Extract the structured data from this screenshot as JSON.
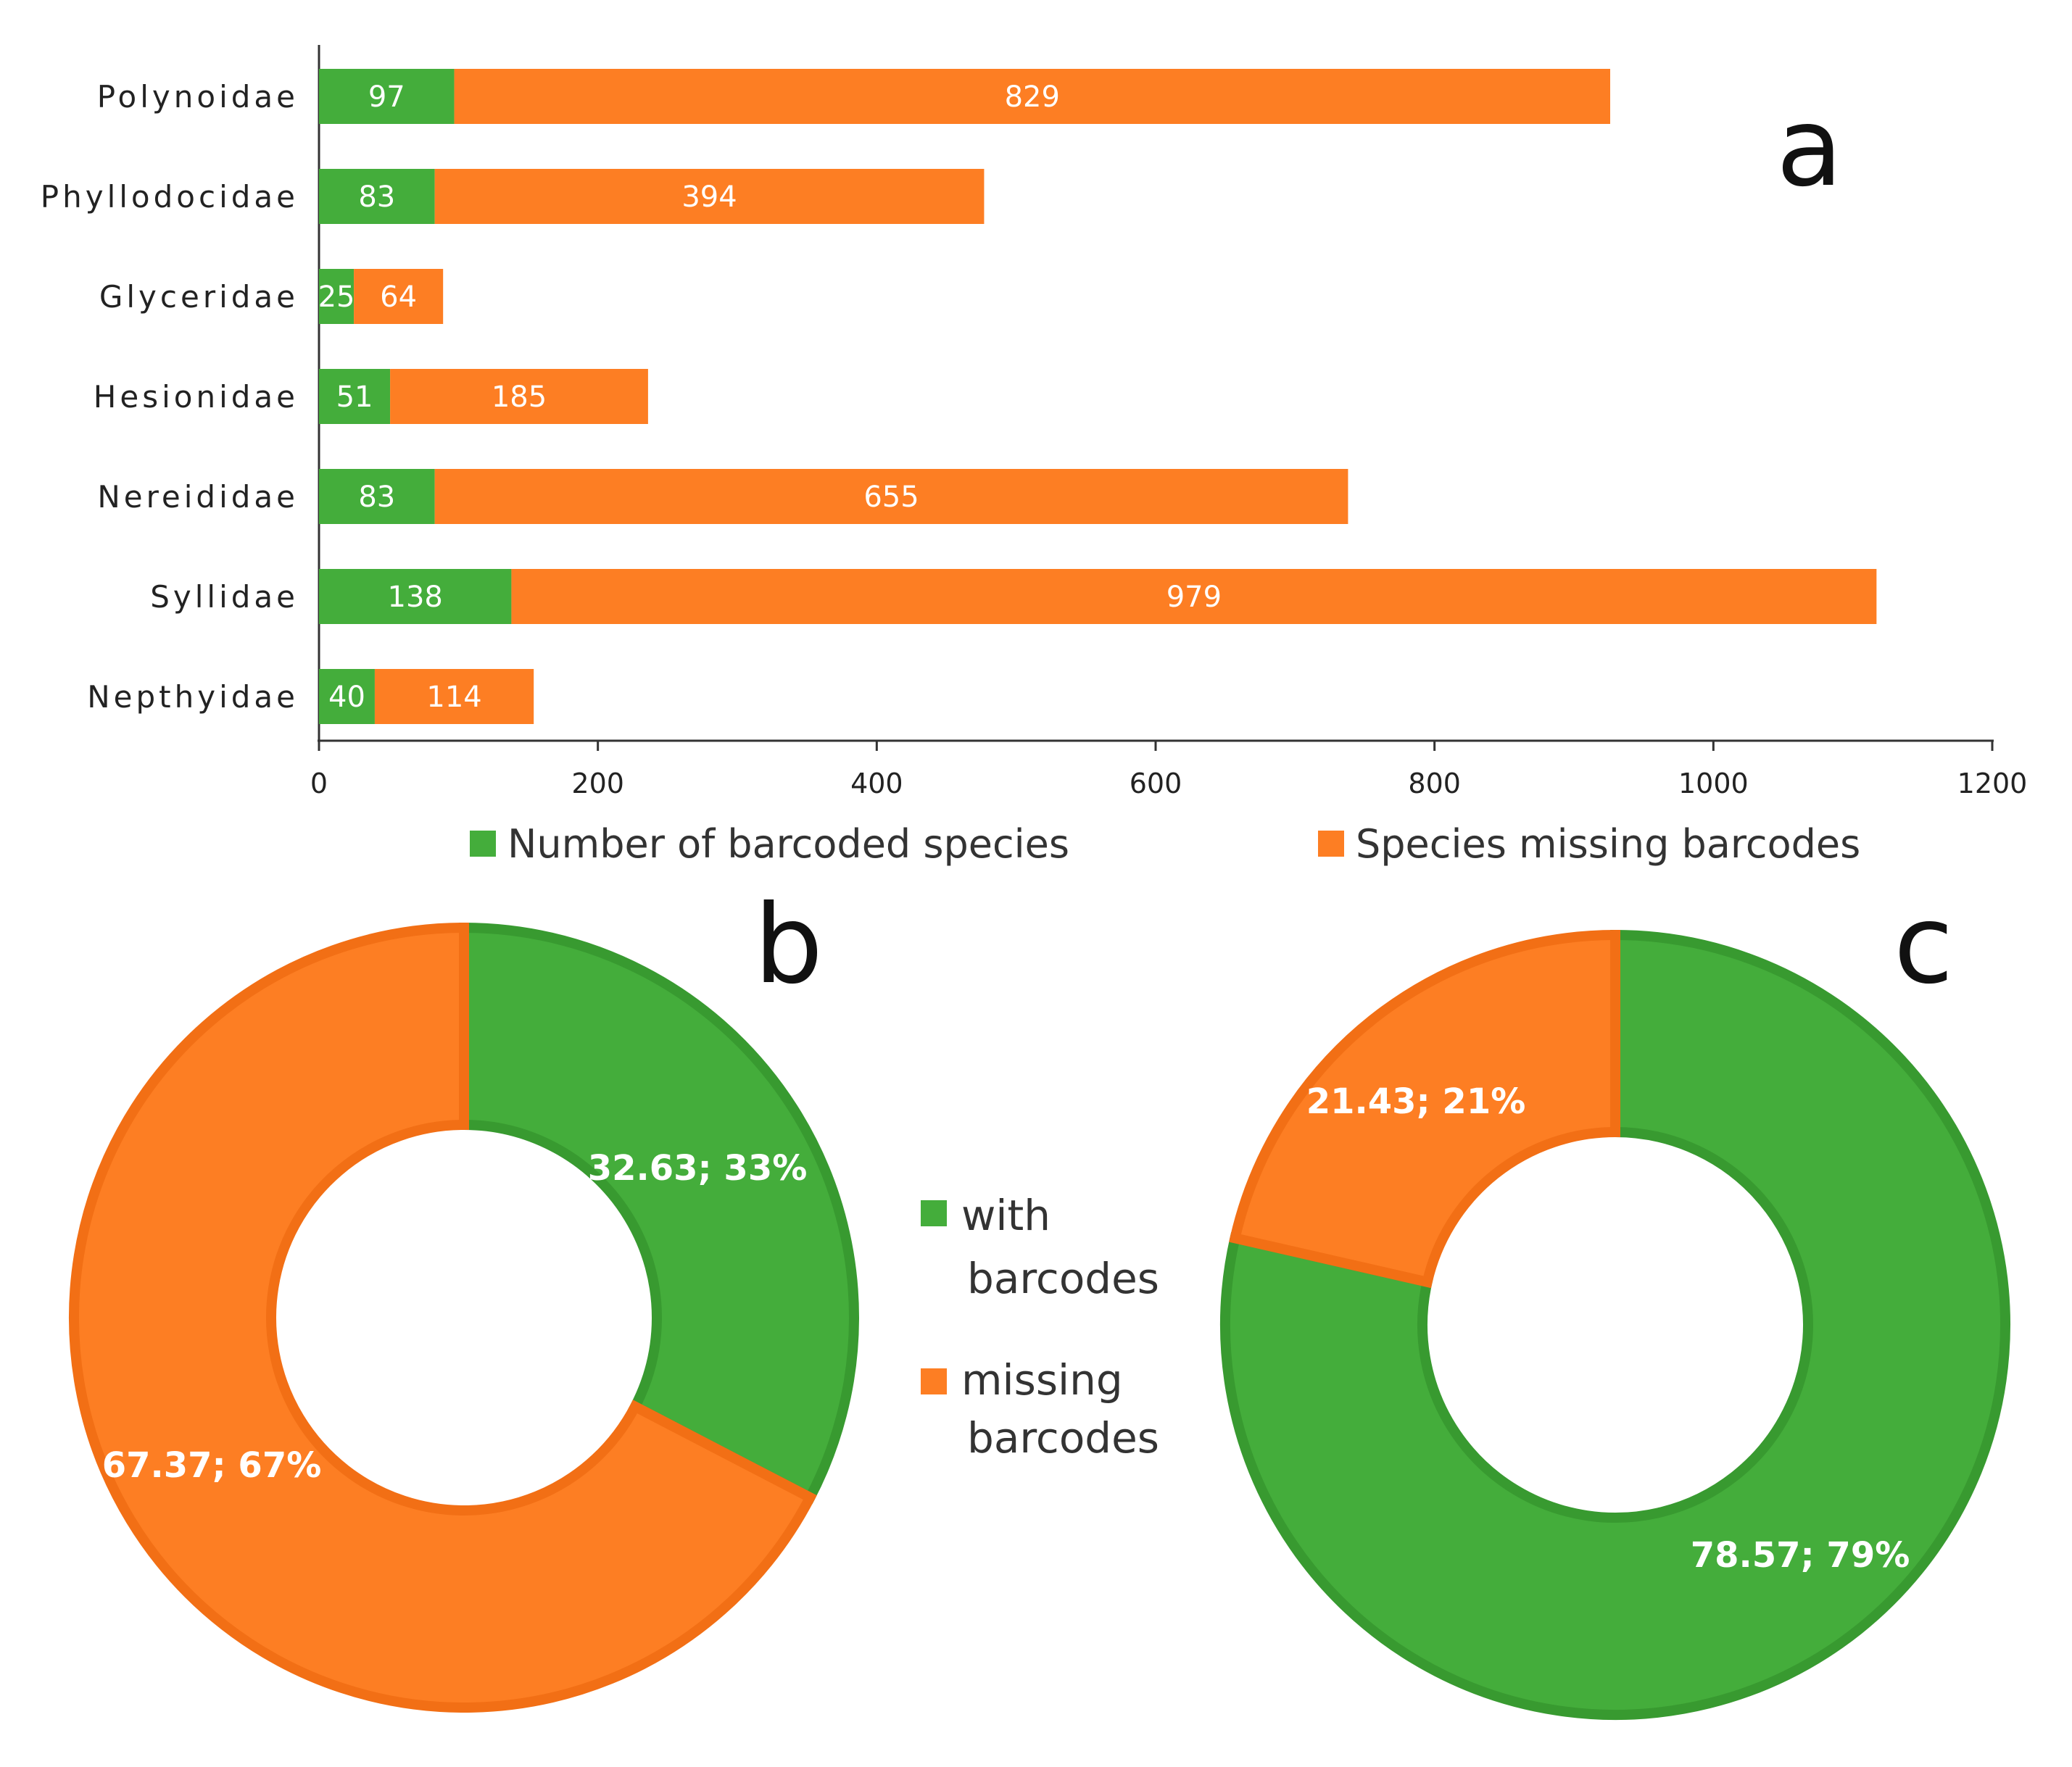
{
  "colors": {
    "green": "#44ad3b",
    "green_dark": "#389a30",
    "orange": "#fd7e23",
    "orange_dark": "#f26f15",
    "axis": "#333333"
  },
  "chart_data": [
    {
      "panel": "a",
      "type": "bar",
      "orientation": "horizontal",
      "stacked": true,
      "categories": [
        "Polynoidae",
        "Phyllodocidae",
        "Glyceridae",
        "Hesionidae",
        "Nereididae",
        "Syllidae",
        "Nepthyidae"
      ],
      "series": [
        {
          "name": "Number of barcoded species",
          "color": "#44ad3b",
          "values": [
            97,
            83,
            25,
            51,
            83,
            138,
            40
          ]
        },
        {
          "name": "Species missing barcodes",
          "color": "#fd7e23",
          "values": [
            829,
            394,
            64,
            185,
            655,
            979,
            114
          ]
        }
      ],
      "xlim": [
        0,
        1200
      ],
      "xticks": [
        "0",
        "200",
        "400",
        "600",
        "800",
        "1000",
        "1200"
      ],
      "legend_position": "bottom"
    },
    {
      "panel": "b",
      "type": "pie",
      "donut": true,
      "slices": [
        {
          "name": "with barcodes",
          "value": 32.63,
          "label": "32.63; 33%",
          "color": "#44ad3b"
        },
        {
          "name": "missing barcodes",
          "value": 67.37,
          "label": "67.37; 67%",
          "color": "#fd7e23"
        }
      ]
    },
    {
      "panel": "c",
      "type": "pie",
      "donut": true,
      "slices": [
        {
          "name": "with barcodes",
          "value": 78.57,
          "label": "78.57; 79%",
          "color": "#44ad3b"
        },
        {
          "name": "missing barcodes",
          "value": 21.43,
          "label": "21.43; 21%",
          "color": "#fd7e23"
        }
      ]
    }
  ],
  "pie_legend": [
    {
      "lines": [
        "with",
        "barcodes"
      ],
      "color": "#44ad3b"
    },
    {
      "lines": [
        "missing",
        "barcodes"
      ],
      "color": "#fd7e23"
    }
  ]
}
